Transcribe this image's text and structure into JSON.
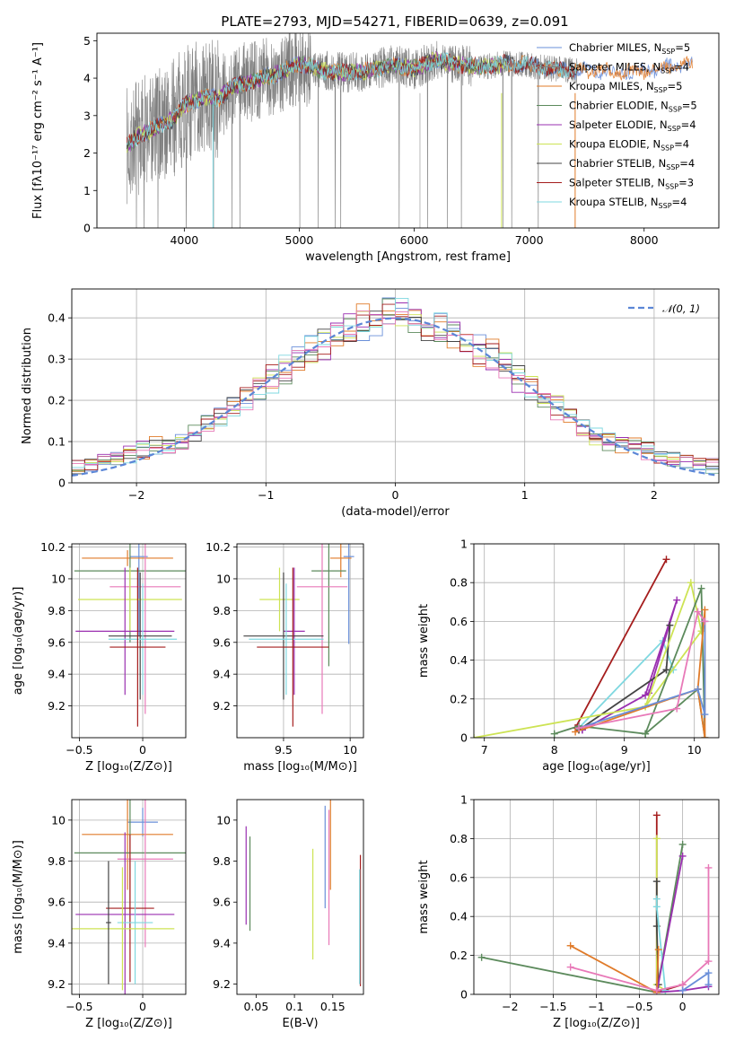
{
  "figure": {
    "title": "PLATE=2793, MJD=54271, FIBERID=0639, z=0.091"
  },
  "colors": {
    "Chabrier MILES": "#6a8fd9",
    "Salpeter MILES": "#7f7f7f",
    "Kroupa MILES": "#e07b2a",
    "Chabrier ELODIE": "#5c8a5c",
    "Salpeter ELODIE": "#9a2fb0",
    "Kroupa ELODIE": "#cde354",
    "Chabrier STELIB": "#444444",
    "Salpeter STELIB": "#a51d1d",
    "Kroupa STELIB": "#7fd8e0",
    "pink": "#e879b8"
  },
  "chart_data": [
    {
      "id": "spectrum",
      "type": "line",
      "xlabel": "wavelength [Angstrom, rest frame]",
      "ylabel": "Flux [fλ10⁻¹⁷ erg cm⁻² s⁻¹ A⁻¹]",
      "xlim": [
        3240,
        8650
      ],
      "ylim": [
        0,
        5.2
      ],
      "xticks": [
        4000,
        5000,
        6000,
        7000,
        8000
      ],
      "yticks": [
        0,
        1,
        2,
        3,
        4,
        5
      ],
      "legend_position": "top-right",
      "legend": [
        {
          "name": "Chabrier MILES, N",
          "sub": "SSP",
          "suffix": "=5"
        },
        {
          "name": "Salpeter MILES, N",
          "sub": "SSP",
          "suffix": "=4"
        },
        {
          "name": "Kroupa MILES, N",
          "sub": "SSP",
          "suffix": "=5"
        },
        {
          "name": "Chabrier ELODIE, N",
          "sub": "SSP",
          "suffix": "=5"
        },
        {
          "name": "Salpeter ELODIE, N",
          "sub": "SSP",
          "suffix": "=4"
        },
        {
          "name": "Kroupa ELODIE, N",
          "sub": "SSP",
          "suffix": "=4"
        },
        {
          "name": "Chabrier STELIB, N",
          "sub": "SSP",
          "suffix": "=4"
        },
        {
          "name": "Salpeter STELIB, N",
          "sub": "SSP",
          "suffix": "=3"
        },
        {
          "name": "Kroupa STELIB, N",
          "sub": "SSP",
          "suffix": "=4"
        }
      ],
      "continuum_model": {
        "x": [
          3500,
          3600,
          3700,
          3800,
          3900,
          4000,
          4100,
          4200,
          4300,
          4400,
          4500,
          4600,
          4700,
          4800,
          4900,
          5000,
          5200,
          5400,
          5600,
          5800,
          6000,
          6200,
          6400,
          6600,
          6800,
          7000,
          7200,
          7400,
          7600,
          7800,
          8000,
          8200,
          8400,
          8600
        ],
        "y": [
          2.2,
          2.45,
          2.6,
          2.75,
          2.9,
          3.3,
          3.4,
          3.5,
          3.45,
          3.75,
          3.85,
          3.9,
          4.05,
          4.1,
          4.25,
          4.4,
          4.2,
          4.15,
          4.2,
          4.35,
          4.25,
          4.5,
          4.35,
          4.3,
          4.4,
          4.35,
          4.25,
          4.2,
          4.2,
          4.15,
          4.2,
          4.3,
          4.35,
          4.4
        ]
      }
    },
    {
      "id": "residuals",
      "type": "histogram",
      "xlabel": "(data-model)/error",
      "ylabel": "Normed distribution",
      "xlim": [
        -2.5,
        2.5
      ],
      "ylim": [
        0,
        0.47
      ],
      "xticks": [
        -2,
        -1,
        0,
        1,
        2
      ],
      "yticks": [
        0.0,
        0.1,
        0.2,
        0.3,
        0.4
      ],
      "grid": true,
      "legend_position": "top-right",
      "legend": "𝒩(0, 1)",
      "reference_curve": "normal(0,1)",
      "bin_width": 0.1
    },
    {
      "id": "age-vs-Z",
      "type": "errorbar",
      "xlabel": "Z [log₁₀(Z/Z⊙)]",
      "ylabel": "age  [log₁₀(age/yr)]",
      "xlim": [
        -0.56,
        0.34
      ],
      "ylim": [
        9.0,
        10.22
      ],
      "xticks": [
        -0.5,
        0.0
      ],
      "yticks": [
        9.2,
        9.4,
        9.6,
        9.8,
        10.0,
        10.2
      ],
      "grid": true,
      "points": [
        {
          "series": "Chabrier MILES",
          "x": -0.03,
          "xerr": 0.07,
          "y": 10.14,
          "yerr": 0.5
        },
        {
          "series": "Kroupa MILES",
          "x": -0.12,
          "xerr": 0.36,
          "y": 10.13,
          "yerr": 0.05
        },
        {
          "series": "Chabrier ELODIE",
          "x": -0.1,
          "xerr": 0.44,
          "y": 10.05,
          "yerr": 0.45
        },
        {
          "series": "pink",
          "x": 0.02,
          "xerr": 0.28,
          "y": 9.95,
          "yerr": 0.8
        },
        {
          "series": "Kroupa ELODIE",
          "x": -0.1,
          "xerr": 0.41,
          "y": 9.87,
          "yerr": 0.2
        },
        {
          "series": "Salpeter ELODIE",
          "x": -0.14,
          "xerr": 0.39,
          "y": 9.67,
          "yerr": 0.4
        },
        {
          "series": "Chabrier STELIB",
          "x": -0.02,
          "xerr": 0.25,
          "y": 9.64,
          "yerr": 0.4
        },
        {
          "series": "Kroupa STELIB",
          "x": 0.0,
          "xerr": 0.27,
          "y": 9.62,
          "yerr": 0.35
        },
        {
          "series": "Salpeter STELIB",
          "x": -0.04,
          "xerr": 0.22,
          "y": 9.57,
          "yerr": 0.5
        }
      ]
    },
    {
      "id": "age-vs-mass",
      "type": "errorbar",
      "xlabel": "mass [log₁₀(M/M⊙)]",
      "ylabel": "",
      "xlim": [
        9.15,
        10.1
      ],
      "ylim": [
        9.0,
        10.22
      ],
      "xticks": [
        9.5,
        10.0
      ],
      "yticks": [
        9.2,
        9.4,
        9.6,
        9.8,
        10.0,
        10.2
      ],
      "grid": true,
      "points": [
        {
          "series": "Chabrier MILES",
          "x": 9.99,
          "xerr": 0.04,
          "y": 10.14,
          "yerr": 0.55
        },
        {
          "series": "Kroupa MILES",
          "x": 9.93,
          "xerr": 0.08,
          "y": 10.13,
          "yerr": 0.12
        },
        {
          "series": "Chabrier ELODIE",
          "x": 9.84,
          "xerr": 0.13,
          "y": 10.05,
          "yerr": 0.6
        },
        {
          "series": "pink",
          "x": 9.79,
          "xerr": 0.19,
          "y": 9.95,
          "yerr": 0.8
        },
        {
          "series": "Kroupa ELODIE",
          "x": 9.47,
          "xerr": 0.15,
          "y": 9.87,
          "yerr": 0.2
        },
        {
          "series": "Salpeter ELODIE",
          "x": 9.58,
          "xerr": 0.08,
          "y": 9.67,
          "yerr": 0.4
        },
        {
          "series": "Chabrier STELIB",
          "x": 9.5,
          "xerr": 0.3,
          "y": 9.64,
          "yerr": 0.4
        },
        {
          "series": "Kroupa STELIB",
          "x": 9.52,
          "xerr": 0.28,
          "y": 9.62,
          "yerr": 0.35
        },
        {
          "series": "Salpeter STELIB",
          "x": 9.57,
          "xerr": 0.27,
          "y": 9.57,
          "yerr": 0.5
        }
      ]
    },
    {
      "id": "mass-weight-vs-age",
      "type": "line",
      "xlabel": "age  [log₁₀(age/yr)]",
      "ylabel": "mass weight",
      "xlim": [
        6.85,
        10.35
      ],
      "ylim": [
        0,
        1
      ],
      "xticks": [
        7,
        8,
        9,
        10
      ],
      "yticks": [
        0.0,
        0.2,
        0.4,
        0.6,
        0.8,
        1.0
      ],
      "grid": true,
      "series": [
        {
          "name": "Salpeter STELIB",
          "x": [
            8.3,
            9.6,
            8.3
          ],
          "y": [
            0.05,
            0.92,
            0.05
          ]
        },
        {
          "name": "Kroupa STELIB",
          "x": [
            8.35,
            9.55,
            9.7
          ],
          "y": [
            0.05,
            0.5,
            0.35
          ]
        },
        {
          "name": "Salpeter ELODIE",
          "x": [
            8.4,
            9.3,
            9.75,
            9.35,
            8.4
          ],
          "y": [
            0.04,
            0.22,
            0.71,
            0.23,
            0.04
          ]
        },
        {
          "name": "Chabrier STELIB",
          "x": [
            8.35,
            9.6,
            9.65,
            9.6,
            8.35
          ],
          "y": [
            0.04,
            0.35,
            0.58,
            0.35,
            0.04
          ]
        },
        {
          "name": "Kroupa ELODIE",
          "x": [
            6.85,
            9.3,
            9.95,
            10.1,
            9.3
          ],
          "y": [
            0.0,
            0.16,
            0.8,
            0.55,
            0.16
          ]
        },
        {
          "name": "Chabrier ELODIE",
          "x": [
            8.0,
            8.35,
            9.3,
            10.1,
            10.15,
            10.05,
            9.3
          ],
          "y": [
            0.02,
            0.06,
            0.02,
            0.77,
            0.0,
            0.25,
            0.02
          ]
        },
        {
          "name": "Kroupa MILES",
          "x": [
            8.3,
            10.05,
            10.15,
            10.15,
            10.05
          ],
          "y": [
            0.03,
            0.25,
            0.0,
            0.66,
            0.25
          ]
        },
        {
          "name": "Chabrier MILES",
          "x": [
            8.35,
            10.05,
            10.15,
            10.15
          ],
          "y": [
            0.05,
            0.25,
            0.12,
            0.6
          ]
        },
        {
          "name": "pink",
          "x": [
            8.35,
            9.75,
            10.05,
            10.15
          ],
          "y": [
            0.05,
            0.15,
            0.65,
            0.6
          ]
        }
      ]
    },
    {
      "id": "mass-vs-Z",
      "type": "errorbar",
      "xlabel": "Z [log₁₀(Z/Z⊙)]",
      "ylabel": "mass [log₁₀(M/M⊙)]",
      "xlim": [
        -0.56,
        0.34
      ],
      "ylim": [
        9.15,
        10.1
      ],
      "xticks": [
        -0.5,
        0.0
      ],
      "yticks": [
        9.2,
        9.4,
        9.6,
        9.8,
        10.0
      ],
      "grid": true,
      "points": [
        {
          "series": "Chabrier MILES",
          "x": 0.0,
          "xerr": 0.12,
          "y": 9.99,
          "yerr": 0.07
        },
        {
          "series": "Kroupa MILES",
          "x": -0.12,
          "xerr": 0.36,
          "y": 9.93,
          "yerr": 0.27
        },
        {
          "series": "Chabrier ELODIE",
          "x": -0.1,
          "xerr": 0.44,
          "y": 9.84,
          "yerr": 0.38
        },
        {
          "series": "pink",
          "x": 0.02,
          "xerr": 0.22,
          "y": 9.81,
          "yerr": 0.43
        },
        {
          "series": "Salpeter STELIB",
          "x": -0.1,
          "xerr": 0.19,
          "y": 9.57,
          "yerr": 0.36
        },
        {
          "series": "Salpeter ELODIE",
          "x": -0.14,
          "xerr": 0.39,
          "y": 9.54,
          "yerr": 0.4
        },
        {
          "series": "Kroupa STELIB",
          "x": -0.06,
          "xerr": 0.14,
          "y": 9.5,
          "yerr": 0.3
        },
        {
          "series": "Kroupa ELODIE",
          "x": -0.16,
          "xerr": 0.41,
          "y": 9.47,
          "yerr": 0.3
        },
        {
          "series": "Chabrier STELIB",
          "x": -0.27,
          "xerr": 0.02,
          "y": 9.5,
          "yerr": 0.3
        }
      ]
    },
    {
      "id": "mass-vs-EBV",
      "type": "errorbar",
      "xlabel": "E(B-V)",
      "ylabel": "",
      "xlim": [
        0.025,
        0.19
      ],
      "ylim": [
        9.15,
        10.1
      ],
      "xticks": [
        0.05,
        0.1,
        0.15
      ],
      "yticks": [
        9.2,
        9.4,
        9.6,
        9.8,
        10.0
      ],
      "grid": false,
      "points": [
        {
          "series": "Salpeter ELODIE",
          "x": 0.037,
          "y": 9.73,
          "yerr": 0.24
        },
        {
          "series": "Chabrier ELODIE",
          "x": 0.042,
          "y": 9.69,
          "yerr": 0.23
        },
        {
          "series": "Kroupa ELODIE",
          "x": 0.124,
          "y": 9.59,
          "yerr": 0.27
        },
        {
          "series": "Chabrier MILES",
          "x": 0.14,
          "y": 9.82,
          "yerr": 0.25
        },
        {
          "series": "Kroupa MILES",
          "x": 0.147,
          "y": 9.88,
          "yerr": 0.22
        },
        {
          "series": "pink",
          "x": 0.145,
          "y": 9.72,
          "yerr": 0.33
        },
        {
          "series": "Salpeter STELIB",
          "x": 0.186,
          "y": 9.51,
          "yerr": 0.32
        },
        {
          "series": "Kroupa STELIB",
          "x": 0.185,
          "y": 9.48,
          "yerr": 0.28
        }
      ]
    },
    {
      "id": "mass-weight-vs-Z",
      "type": "line",
      "xlabel": "Z [log₁₀(Z/Z⊙)]",
      "ylabel": "mass weight",
      "xlim": [
        -2.42,
        0.42
      ],
      "ylim": [
        0,
        1
      ],
      "xticks": [
        -2.0,
        -1.5,
        -1.0,
        -0.5,
        0.0
      ],
      "yticks": [
        0.0,
        0.2,
        0.4,
        0.6,
        0.8,
        1.0
      ],
      "grid": true,
      "series": [
        {
          "name": "Chabrier ELODIE",
          "x": [
            -2.33,
            -0.3,
            0.0,
            -0.3
          ],
          "y": [
            0.19,
            0.01,
            0.77,
            0.01
          ]
        },
        {
          "name": "Salpeter STELIB",
          "x": [
            -0.3,
            -0.3,
            0.0
          ],
          "y": [
            0.92,
            0.01,
            0.05
          ]
        },
        {
          "name": "Kroupa ELODIE",
          "x": [
            -0.3,
            -0.3,
            -0.2
          ],
          "y": [
            0.8,
            0.05,
            0.02
          ]
        },
        {
          "name": "Chabrier STELIB",
          "x": [
            -0.3,
            -0.3,
            -0.28
          ],
          "y": [
            0.58,
            0.35,
            0.05
          ]
        },
        {
          "name": "Kroupa STELIB",
          "x": [
            -0.3,
            -0.3,
            -0.2
          ],
          "y": [
            0.49,
            0.45,
            0.02
          ]
        },
        {
          "name": "Salpeter ELODIE",
          "x": [
            0.0,
            -0.3,
            0.0,
            0.3
          ],
          "y": [
            0.71,
            0.01,
            0.02,
            0.04
          ]
        },
        {
          "name": "Kroupa MILES",
          "x": [
            -1.3,
            -0.3,
            -0.28
          ],
          "y": [
            0.25,
            0.01,
            0.23
          ]
        },
        {
          "name": "pink",
          "x": [
            -1.3,
            -0.3,
            0.0,
            0.3,
            0.3
          ],
          "y": [
            0.14,
            0.02,
            0.05,
            0.17,
            0.65
          ]
        },
        {
          "name": "Chabrier MILES",
          "x": [
            0.0,
            0.3,
            0.3
          ],
          "y": [
            0.02,
            0.11,
            0.05
          ]
        }
      ]
    }
  ]
}
